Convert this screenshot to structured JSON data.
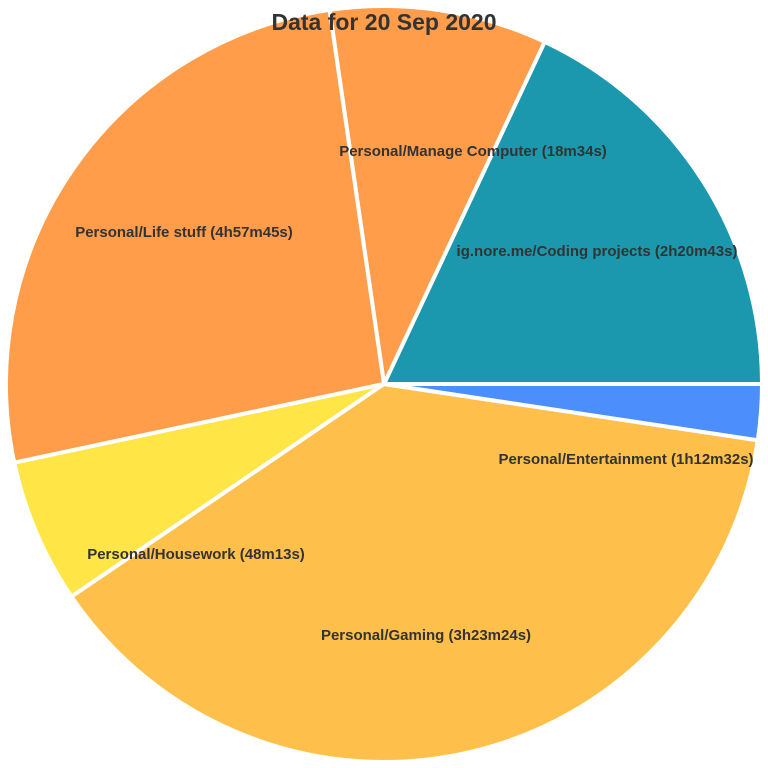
{
  "chart_data": {
    "type": "pie",
    "title": "Data for 20 Sep 2020",
    "slices": [
      {
        "label": "ig.nore.me/Coding projects (2h20m43s)",
        "value": 8443,
        "color": "#1b98ae"
      },
      {
        "label": "Personal/Entertainment (1h12m32s)",
        "value": 4352,
        "color": "#ff9d4b"
      },
      {
        "label": "Personal/Gaming (3h23m24s)",
        "value": 12204,
        "color": "#ff9d4b"
      },
      {
        "label": "Personal/Housework (48m13s)",
        "value": 2893,
        "color": "#ffe646"
      },
      {
        "label": "Personal/Life stuff (4h57m45s)",
        "value": 17865,
        "color": "#ffc04b"
      },
      {
        "label": "Personal/Manage Computer (18m34s)",
        "value": 1114,
        "color": "#4b8efc"
      }
    ],
    "start": "east",
    "direction": "counter-clockwise"
  }
}
